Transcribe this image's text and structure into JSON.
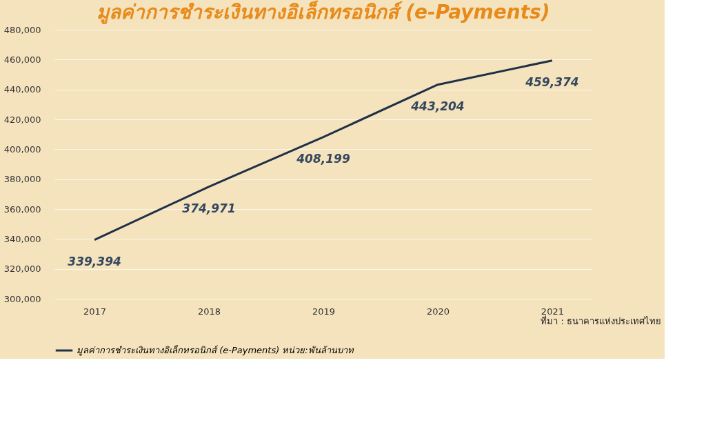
{
  "chart_data": {
    "type": "line",
    "title": "มูลค่าการชำระเงินทางอิเล็กทรอนิกส์ (e-Payments)",
    "categories": [
      "2017",
      "2018",
      "2019",
      "2020",
      "2021"
    ],
    "series": [
      {
        "name": "มูลค่าการชำระเงินทางอิเล็กทรอนิกส์ (e-Payments) หน่วย:พันล้านบาท",
        "color": "#1f3047",
        "values": [
          339394,
          374971,
          408199,
          443204,
          459374
        ],
        "value_labels": [
          "339,394",
          "374,971",
          "408,199",
          "443,204",
          "459,374"
        ]
      }
    ],
    "ylim": [
      300000,
      480000
    ],
    "yticks": [
      {
        "value": 300000,
        "label": "300,000"
      },
      {
        "value": 320000,
        "label": "320,000"
      },
      {
        "value": 340000,
        "label": "340,000"
      },
      {
        "value": 360000,
        "label": "360,000"
      },
      {
        "value": 380000,
        "label": "380,000"
      },
      {
        "value": 400000,
        "label": "400,000"
      },
      {
        "value": 420000,
        "label": "420,000"
      },
      {
        "value": 440000,
        "label": "440,000"
      },
      {
        "value": 460000,
        "label": "460,000"
      },
      {
        "value": 480000,
        "label": "480,000"
      }
    ],
    "grid": "y",
    "legend": "bottom",
    "marker": "none",
    "line_style": "solid",
    "annotations": [
      "ที่มา : ธนาคารแห่งประเทศไทย"
    ]
  }
}
